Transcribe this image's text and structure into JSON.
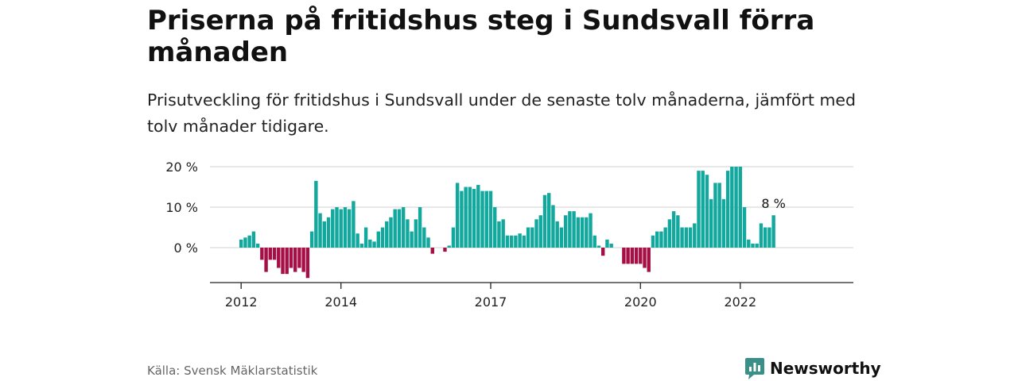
{
  "title": "Priserna på fritidshus steg i Sundsvall förra månaden",
  "subtitle": "Prisutveckling för fritidshus i Sundsvall under de senaste tolv månaderna, jämfört med tolv månader tidigare.",
  "source": "Källa: Svensk Mäklarstatistik",
  "brand": "Newsworthy",
  "colors": {
    "positive": "#13a89e",
    "negative": "#a50f45",
    "grid": "#d9d9d9",
    "axis": "#222222"
  },
  "chart_data": {
    "type": "bar",
    "x_start": "2012-01",
    "x_tick_labels": [
      "2012",
      "2014",
      "2017",
      "2020",
      "2022"
    ],
    "y_tick_labels": [
      "20 %",
      "10 %",
      "0 %"
    ],
    "y_ticks": [
      20,
      10,
      0
    ],
    "ylim": [
      -8,
      20
    ],
    "grid": true,
    "annotation": {
      "label": "8 %",
      "value": 8
    },
    "values": [
      2,
      2.5,
      3,
      4,
      1,
      -3,
      -6,
      -3,
      -3,
      -5,
      -6.5,
      -6.5,
      -5,
      -6,
      -5,
      -6,
      -7.5,
      4,
      16.5,
      8.5,
      6.5,
      7.5,
      9.5,
      10,
      9.5,
      10,
      9.5,
      11.5,
      3.5,
      1,
      5,
      2,
      1.5,
      4,
      5,
      6.5,
      7.5,
      9.5,
      9.5,
      10,
      7,
      4,
      7,
      10,
      5,
      2.5,
      -1.5,
      0,
      0,
      -1,
      0.5,
      5,
      16,
      14,
      15,
      15,
      14.5,
      15.5,
      14,
      14,
      14,
      10,
      6.5,
      7,
      3,
      3,
      3,
      3.5,
      3,
      5,
      5,
      7,
      8,
      13,
      13.5,
      10.5,
      6.5,
      5,
      8,
      9,
      9,
      7.5,
      7.5,
      7.5,
      8.5,
      3,
      0.5,
      -2,
      2,
      1,
      0,
      0,
      -4,
      -4,
      -4,
      -4,
      -4,
      -5,
      -6,
      3,
      4,
      4,
      5,
      7,
      9,
      8,
      5,
      5,
      5,
      6,
      19,
      19,
      18,
      12,
      16,
      16,
      12,
      19,
      20,
      20,
      20,
      10,
      2,
      1,
      1,
      6,
      5,
      5,
      8
    ]
  }
}
